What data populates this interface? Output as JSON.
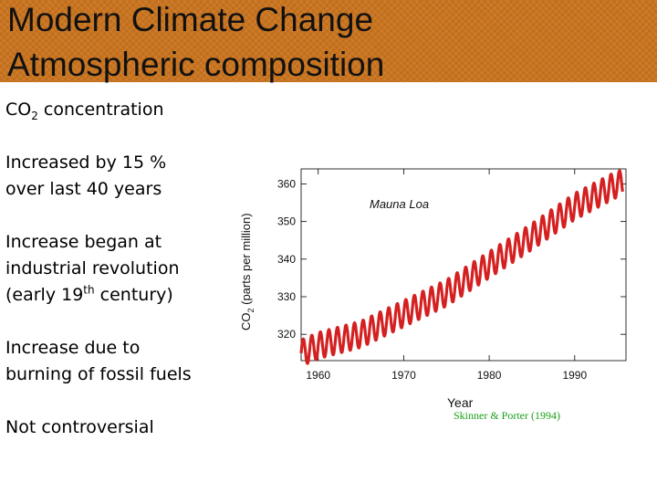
{
  "header": {
    "title_line1": "Modern Climate Change",
    "title_line2": "Atmospheric composition",
    "background_color": "#c9741f"
  },
  "bullets": {
    "b1": {
      "prefix": "CO",
      "sub": "2",
      "suffix": " concentration"
    },
    "b2": {
      "line1": "Increased by 15 %",
      "line2": "over last 40 years"
    },
    "b3": {
      "line1": "Increase began at",
      "line2": "industrial revolution",
      "line3_prefix": "(early 19",
      "line3_sup": "th",
      "line3_suffix": " century)"
    },
    "b4": {
      "line1": "Increase due to",
      "line2": "burning of fossil fuels"
    },
    "b5": {
      "text": "Not controversial"
    }
  },
  "chart_data": {
    "type": "line",
    "title": "Mauna Loa",
    "xlabel": "Year",
    "ylabel_prefix": "CO",
    "ylabel_sub": "2",
    "ylabel_suffix": " (parts per million)",
    "xlim": [
      1958,
      1996
    ],
    "ylim": [
      313,
      364
    ],
    "x_ticks": [
      1960,
      1970,
      1980,
      1990
    ],
    "y_ticks": [
      320,
      330,
      340,
      350,
      360
    ],
    "grid": false,
    "line_color": "#d42020",
    "series": [
      {
        "x": [
          1958,
          1960,
          1965,
          1970,
          1975,
          1980,
          1985,
          1990,
          1995
        ],
        "values": [
          315,
          317,
          320,
          325.5,
          331,
          338.5,
          346,
          354,
          360
        ],
        "seasonal_amplitude": 3.5
      }
    ]
  },
  "credit": "Skinner & Porter (1994)"
}
